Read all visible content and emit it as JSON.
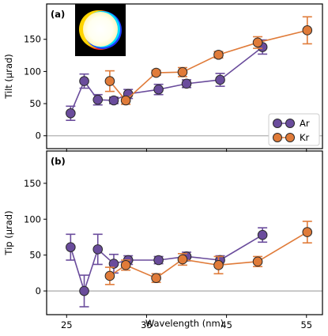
{
  "chart_data": [
    {
      "type": "line",
      "panel_label": "(a)",
      "ylabel": "Tilt (μrad)",
      "xlabel": "",
      "xlim": [
        22.5,
        57.0
      ],
      "ylim": [
        -20,
        205
      ],
      "yticks": [
        0,
        50,
        100,
        150
      ],
      "xticks": [
        25,
        35,
        45,
        55
      ],
      "zero_line": true,
      "inset": "color-fringed circular spot image (white disk with red, yellow, blue and cyan edges on black)",
      "legend": {
        "placement": "lower right",
        "entries": [
          "Ar",
          "Kr"
        ]
      },
      "series": [
        {
          "name": "Ar",
          "color": "#6a4c9c",
          "x": [
            25.5,
            27.2,
            28.9,
            30.9,
            32.7,
            36.5,
            40.0,
            44.2,
            49.5
          ],
          "y": [
            35,
            85,
            56,
            55,
            65,
            72,
            81,
            87,
            138
          ],
          "err": [
            11,
            11,
            8,
            5,
            7,
            8,
            6,
            10,
            11
          ]
        },
        {
          "name": "Kr",
          "color": "#e07b39",
          "x": [
            30.4,
            32.4,
            36.2,
            39.5,
            44.0,
            48.9,
            55.1
          ],
          "y": [
            85,
            55,
            98,
            99,
            126,
            145,
            164
          ],
          "err": [
            16,
            6,
            4,
            7,
            5,
            9,
            21
          ]
        }
      ]
    },
    {
      "type": "line",
      "panel_label": "(b)",
      "ylabel": "Tip (μrad)",
      "xlabel": "Wavelength (nm)",
      "xlim": [
        22.5,
        57.0
      ],
      "ylim": [
        -33,
        195
      ],
      "yticks": [
        0,
        50,
        100,
        150
      ],
      "xticks": [
        25,
        35,
        45,
        55
      ],
      "zero_line": true,
      "series": [
        {
          "name": "Ar",
          "color": "#6a4c9c",
          "x": [
            25.5,
            27.2,
            28.9,
            30.9,
            32.7,
            36.5,
            40.0,
            44.2,
            49.5
          ],
          "y": [
            61,
            0,
            58,
            38,
            43,
            43,
            48,
            43,
            78
          ],
          "err": [
            18,
            22,
            21,
            13,
            6,
            5,
            6,
            6,
            10
          ]
        },
        {
          "name": "Kr",
          "color": "#e07b39",
          "x": [
            30.4,
            32.4,
            36.2,
            39.5,
            44.0,
            48.9,
            55.1
          ],
          "y": [
            21,
            36,
            18,
            44,
            36,
            41,
            82
          ],
          "err": [
            12,
            7,
            6,
            8,
            12,
            7,
            15
          ]
        }
      ]
    }
  ]
}
